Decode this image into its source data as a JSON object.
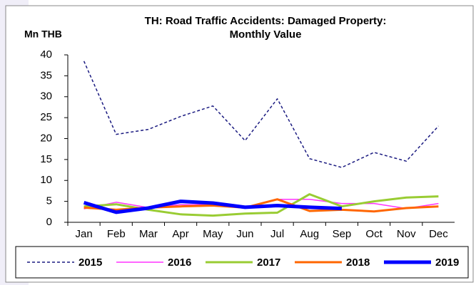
{
  "chart_data": {
    "type": "line",
    "title": [
      "TH: Road Traffic Accidents: Damaged Property:",
      "Monthly Value"
    ],
    "y_label": "Mn THB",
    "categories": [
      "Jan",
      "Feb",
      "Mar",
      "Apr",
      "May",
      "Jun",
      "Jul",
      "Aug",
      "Sep",
      "Oct",
      "Nov",
      "Dec"
    ],
    "ylim": [
      0,
      40
    ],
    "yticks": [
      0,
      5,
      10,
      15,
      20,
      25,
      30,
      35,
      40
    ],
    "grid": false,
    "legend": "bottom",
    "series": [
      {
        "name": "2015",
        "color": "#1a1a80",
        "line_style": "dashed",
        "line_width": 1.5,
        "values": [
          38.5,
          21,
          22.2,
          25.3,
          27.8,
          19.5,
          29.5,
          15.2,
          13.1,
          16.7,
          14.6,
          23
        ]
      },
      {
        "name": "2016",
        "color": "#ff33ff",
        "line_style": "solid",
        "line_width": 1.5,
        "values": [
          3.2,
          4.8,
          3.5,
          4.2,
          4.2,
          3.5,
          5.5,
          5.5,
          4.5,
          4.5,
          3.3,
          4.5
        ]
      },
      {
        "name": "2017",
        "color": "#99cc33",
        "line_style": "solid",
        "line_width": 3,
        "values": [
          3.8,
          4.3,
          3.0,
          1.9,
          1.6,
          2.1,
          2.3,
          6.7,
          3.8,
          5.0,
          5.9,
          6.2
        ]
      },
      {
        "name": "2018",
        "color": "#ff6600",
        "line_style": "solid",
        "line_width": 3,
        "values": [
          3.5,
          3.0,
          3.5,
          3.8,
          4.0,
          3.5,
          5.5,
          2.7,
          3.0,
          2.6,
          3.4,
          3.8
        ]
      },
      {
        "name": "2019",
        "color": "#0000ff",
        "line_style": "solid",
        "line_width": 5,
        "values": [
          4.7,
          2.4,
          3.4,
          5.0,
          4.6,
          3.6,
          4.0,
          3.6,
          3.3,
          null,
          null,
          null
        ]
      }
    ]
  }
}
